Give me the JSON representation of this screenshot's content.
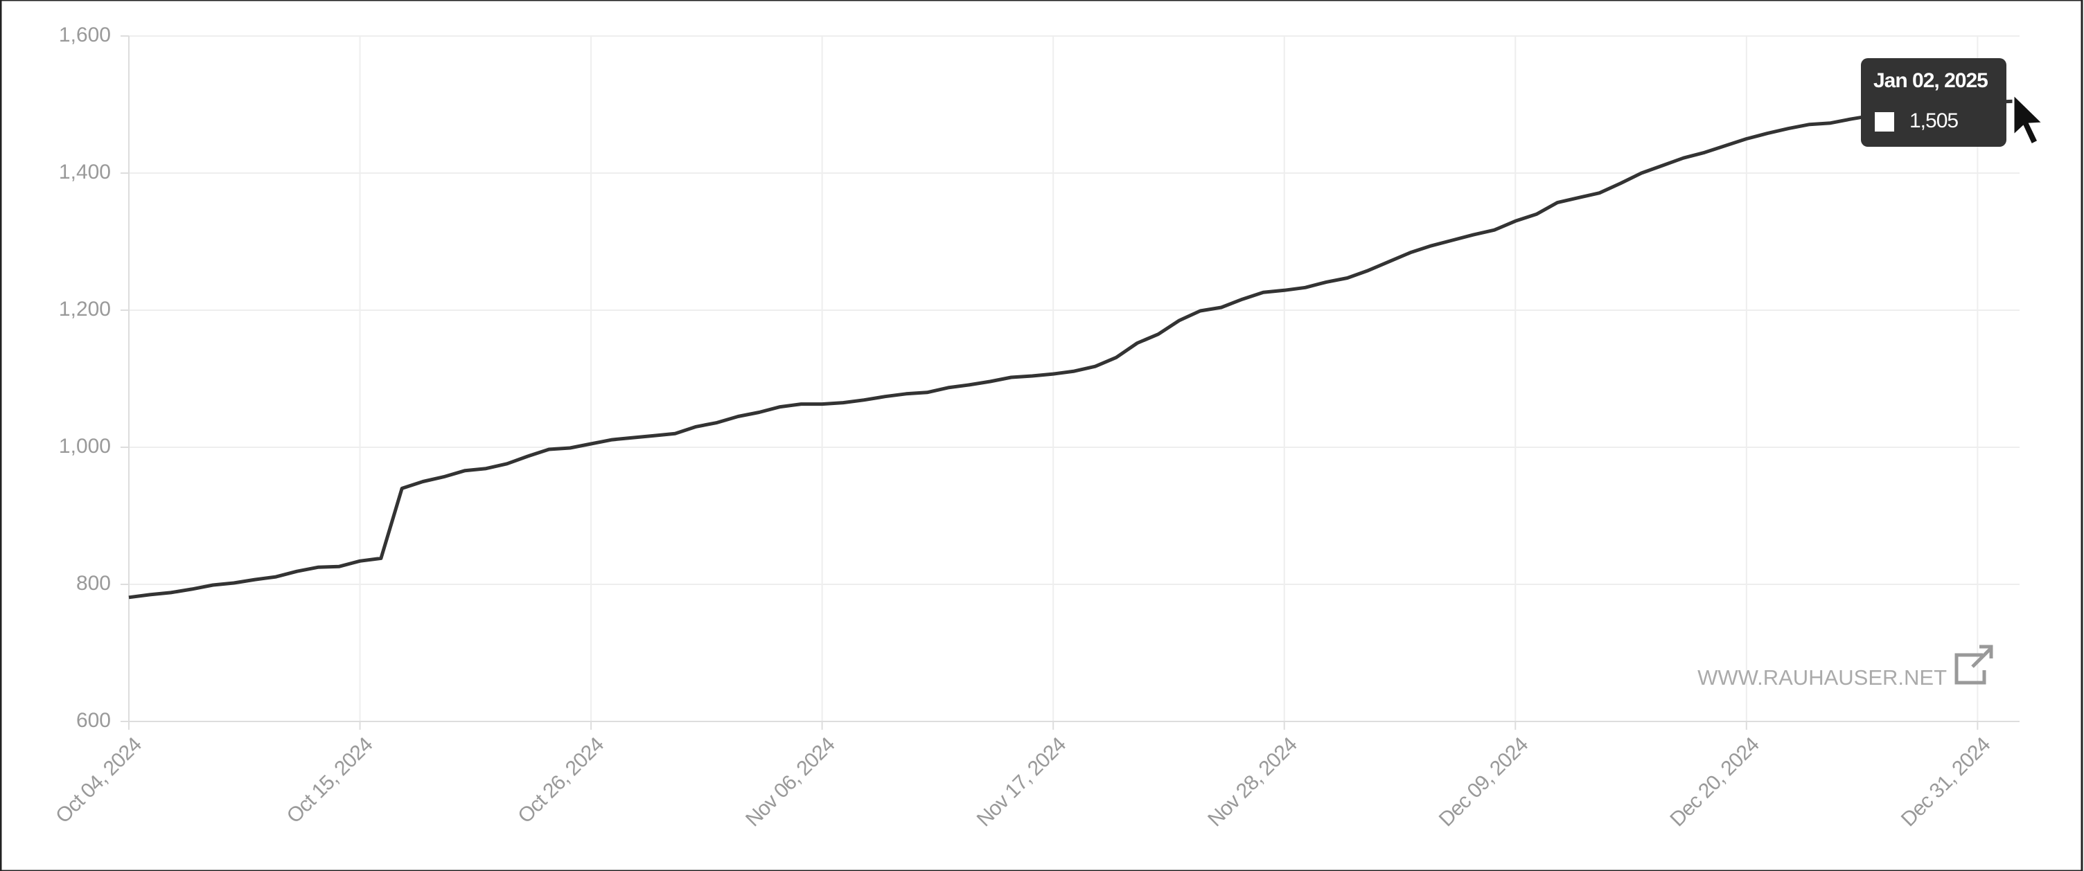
{
  "chart_data": {
    "type": "line",
    "x": [
      "Oct 04, 2024",
      "Oct 05, 2024",
      "Oct 06, 2024",
      "Oct 07, 2024",
      "Oct 08, 2024",
      "Oct 09, 2024",
      "Oct 10, 2024",
      "Oct 11, 2024",
      "Oct 12, 2024",
      "Oct 13, 2024",
      "Oct 14, 2024",
      "Oct 15, 2024",
      "Oct 16, 2024",
      "Oct 17, 2024",
      "Oct 18, 2024",
      "Oct 19, 2024",
      "Oct 20, 2024",
      "Oct 21, 2024",
      "Oct 22, 2024",
      "Oct 23, 2024",
      "Oct 24, 2024",
      "Oct 25, 2024",
      "Oct 26, 2024",
      "Oct 27, 2024",
      "Oct 28, 2024",
      "Oct 29, 2024",
      "Oct 30, 2024",
      "Oct 31, 2024",
      "Nov 01, 2024",
      "Nov 02, 2024",
      "Nov 03, 2024",
      "Nov 04, 2024",
      "Nov 05, 2024",
      "Nov 06, 2024",
      "Nov 07, 2024",
      "Nov 08, 2024",
      "Nov 09, 2024",
      "Nov 10, 2024",
      "Nov 11, 2024",
      "Nov 12, 2024",
      "Nov 13, 2024",
      "Nov 14, 2024",
      "Nov 15, 2024",
      "Nov 16, 2024",
      "Nov 17, 2024",
      "Nov 18, 2024",
      "Nov 19, 2024",
      "Nov 20, 2024",
      "Nov 21, 2024",
      "Nov 22, 2024",
      "Nov 23, 2024",
      "Nov 24, 2024",
      "Nov 25, 2024",
      "Nov 26, 2024",
      "Nov 27, 2024",
      "Nov 28, 2024",
      "Nov 29, 2024",
      "Nov 30, 2024",
      "Dec 01, 2024",
      "Dec 02, 2024",
      "Dec 03, 2024",
      "Dec 04, 2024",
      "Dec 05, 2024",
      "Dec 06, 2024",
      "Dec 07, 2024",
      "Dec 08, 2024",
      "Dec 09, 2024",
      "Dec 10, 2024",
      "Dec 11, 2024",
      "Dec 12, 2024",
      "Dec 13, 2024",
      "Dec 14, 2024",
      "Dec 15, 2024",
      "Dec 16, 2024",
      "Dec 17, 2024",
      "Dec 18, 2024",
      "Dec 19, 2024",
      "Dec 20, 2024",
      "Dec 21, 2024",
      "Dec 22, 2024",
      "Dec 23, 2024",
      "Dec 24, 2024",
      "Dec 25, 2024",
      "Dec 26, 2024",
      "Dec 27, 2024",
      "Dec 28, 2024",
      "Dec 29, 2024",
      "Dec 30, 2024",
      "Dec 31, 2024",
      "Jan 01, 2025",
      "Jan 02, 2025"
    ],
    "values": [
      781,
      785,
      788,
      793,
      799,
      802,
      807,
      811,
      819,
      825,
      826,
      834,
      838,
      940,
      950,
      957,
      966,
      969,
      976,
      987,
      997,
      999,
      1005,
      1011,
      1014,
      1017,
      1020,
      1030,
      1036,
      1045,
      1051,
      1059,
      1063,
      1063,
      1065,
      1069,
      1074,
      1078,
      1080,
      1087,
      1091,
      1096,
      1102,
      1104,
      1107,
      1111,
      1118,
      1131,
      1152,
      1165,
      1185,
      1199,
      1204,
      1216,
      1226,
      1229,
      1233,
      1241,
      1247,
      1258,
      1271,
      1284,
      1294,
      1302,
      1310,
      1317,
      1330,
      1340,
      1357,
      1364,
      1371,
      1385,
      1400,
      1411,
      1422,
      1430,
      1440,
      1450,
      1458,
      1465,
      1471,
      1473,
      1479,
      1484,
      1487,
      1490,
      1494,
      1498,
      1501,
      1504,
      1505
    ],
    "color": "#333333",
    "ylim": [
      600,
      1600
    ],
    "yticks": [
      600,
      {
        "value": 800,
        "label": "800"
      },
      {
        "value": 1000,
        "label": "1,000"
      },
      {
        "value": 1200,
        "label": "1,200"
      },
      {
        "value": 1400,
        "label": "1,400"
      },
      {
        "value": 1600,
        "label": "1,600"
      }
    ],
    "xticks": [
      "Oct 04, 2024",
      "Oct 15, 2024",
      "Oct 26, 2024",
      "Nov 06, 2024",
      "Nov 17, 2024",
      "Nov 28, 2024",
      "Dec 09, 2024",
      "Dec 20, 2024",
      "Dec 31, 2024"
    ],
    "grid": true,
    "watermark": "WWW.RAUHAUSER.NET",
    "tooltip_label": "1,505"
  }
}
